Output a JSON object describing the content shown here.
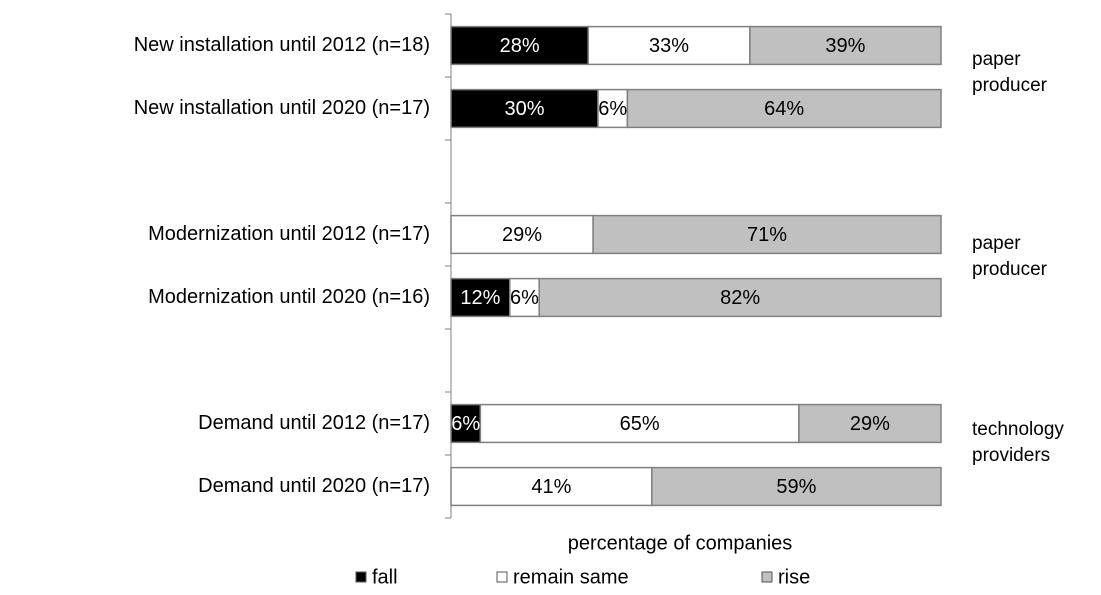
{
  "chart_data": {
    "type": "stacked_barh",
    "categories": [
      "New installation until 2012 (n=18)",
      "New installation until 2020 (n=17)",
      null,
      "Modernization until 2012 (n=17)",
      "Modernization until 2020 (n=16)",
      null,
      "Demand until 2012 (n=17)",
      "Demand until 2020 (n=17)"
    ],
    "series": [
      {
        "name": "fall",
        "color": "#000000",
        "values": [
          28,
          30,
          null,
          null,
          12,
          null,
          6,
          null
        ],
        "value_labels": [
          "28%",
          "30%",
          null,
          null,
          "12%",
          null,
          "6%",
          null
        ]
      },
      {
        "name": "remain same",
        "color": "#ffffff",
        "values": [
          33,
          6,
          null,
          29,
          6,
          null,
          65,
          41
        ],
        "value_labels": [
          "33%",
          "6%",
          null,
          "29%",
          "6%",
          null,
          "65%",
          "41%"
        ]
      },
      {
        "name": "rise",
        "color": "#c0c0c0",
        "values": [
          39,
          64,
          null,
          71,
          82,
          null,
          29,
          59
        ],
        "value_labels": [
          "39%",
          "64%",
          null,
          "71%",
          "82%",
          null,
          "29%",
          "59%"
        ]
      }
    ],
    "xlim": [
      0,
      100
    ],
    "xlabel": "percentage of companies",
    "annotations": [
      {
        "text": "paper producer"
      },
      {
        "text": "paper producer"
      },
      {
        "text": "technology providers"
      }
    ],
    "legend": "bottom"
  }
}
